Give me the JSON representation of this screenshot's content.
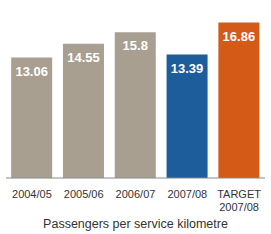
{
  "chart_data": {
    "type": "bar",
    "xlabel": "Passengers per service kilometre",
    "categories": [
      "2004/05",
      "2005/06",
      "2006/07",
      "2007/08",
      "TARGET 2007/08"
    ],
    "values": [
      13.06,
      14.55,
      15.8,
      13.39,
      16.86
    ],
    "colors": [
      "#a89f90",
      "#a89f90",
      "#a89f90",
      "#1d5d9b",
      "#d45a17"
    ],
    "ylim": [
      0,
      18
    ],
    "data_labels": true,
    "tick_labels": "x",
    "grid": false
  }
}
